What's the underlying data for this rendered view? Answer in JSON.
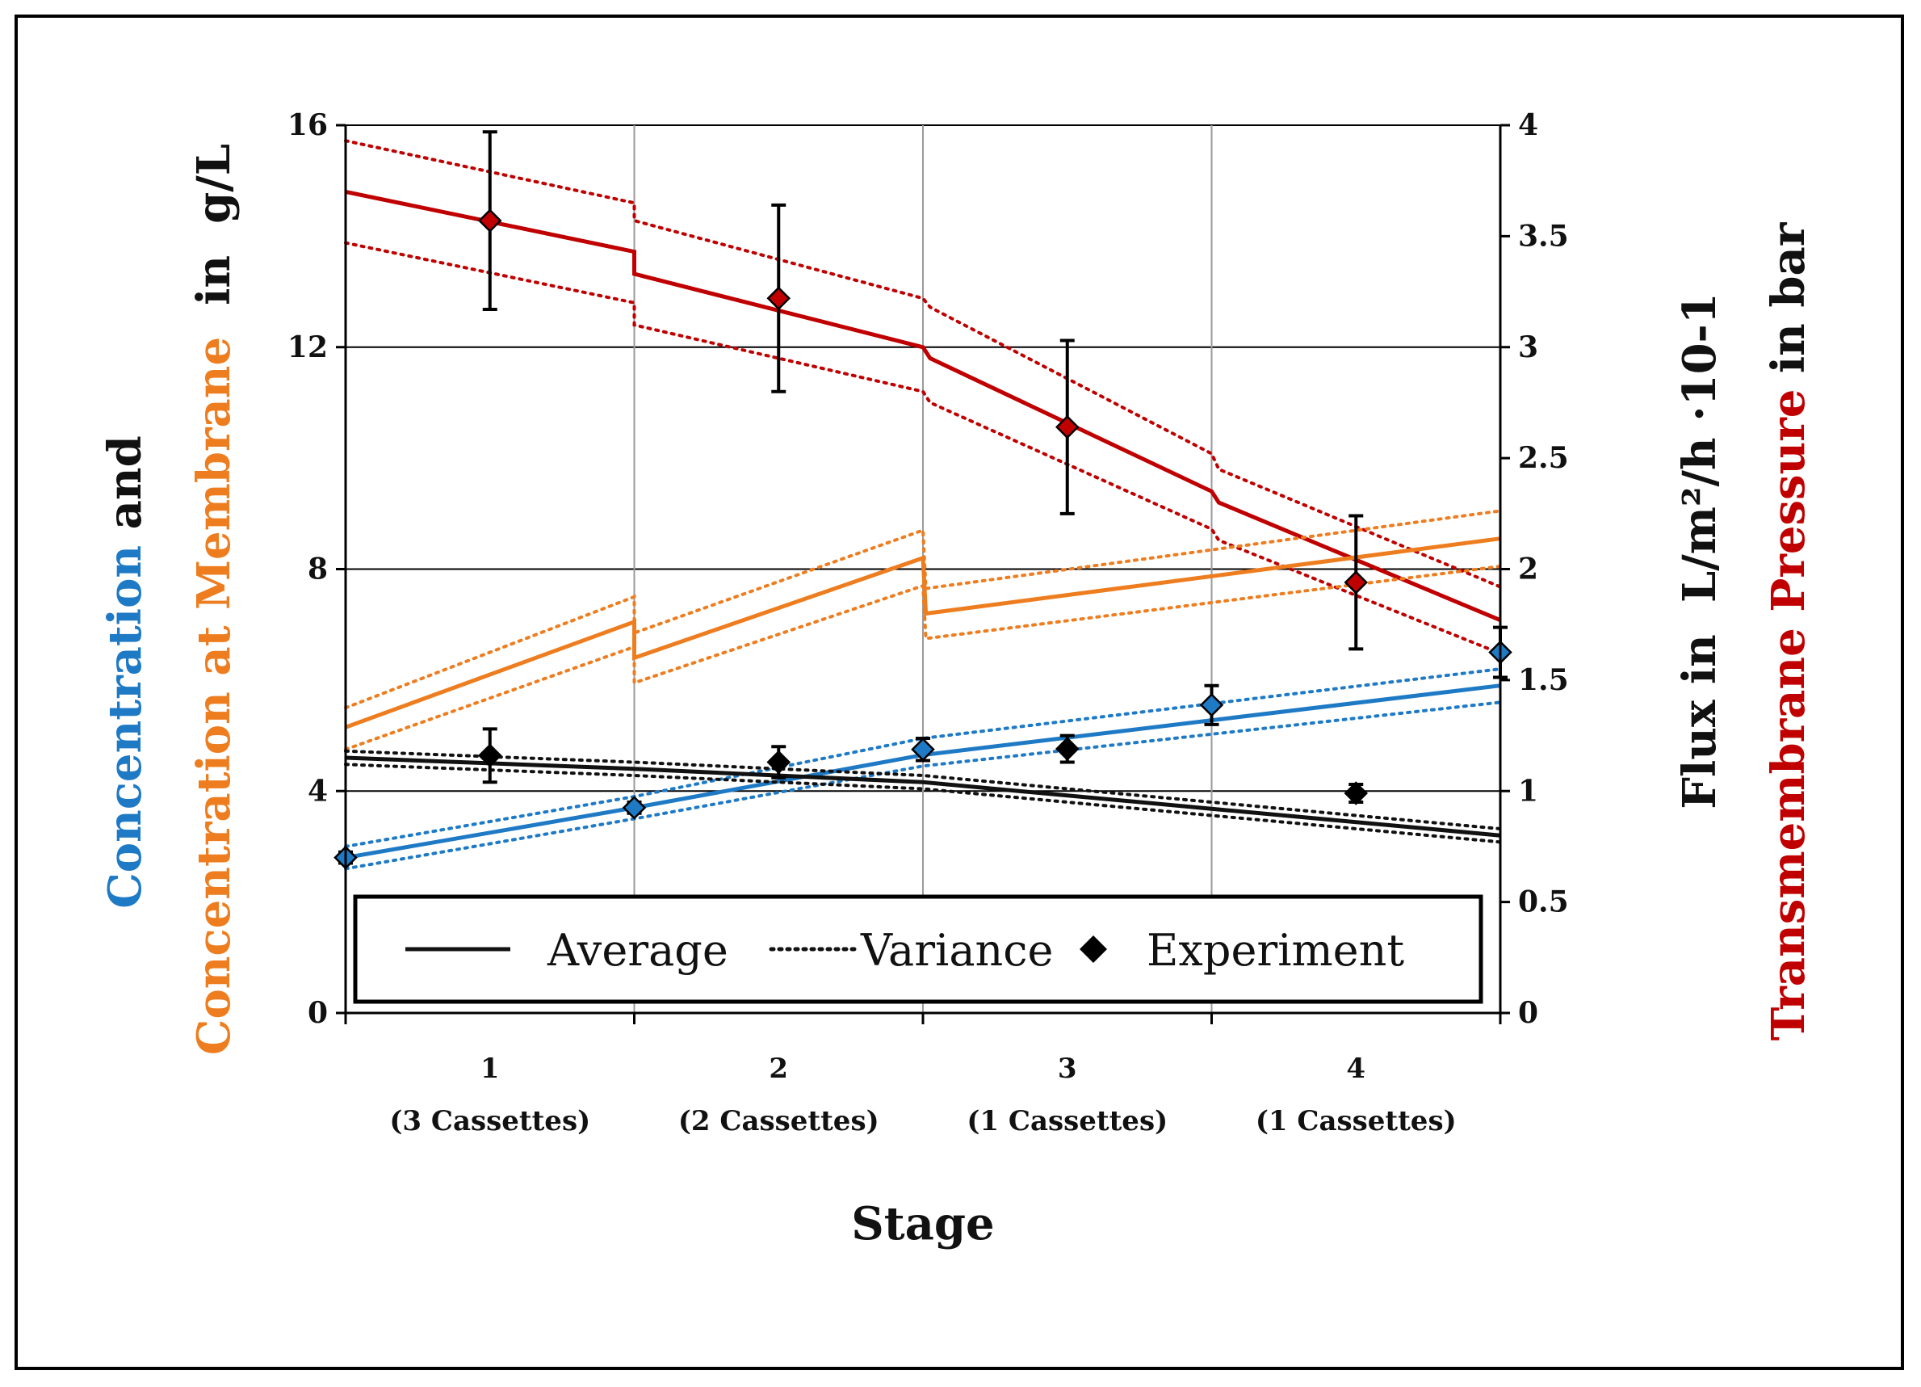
{
  "chart_data": {
    "type": "line",
    "xlabel": "Stage",
    "categories": [
      {
        "num": "1",
        "sub": "(3 Cassettes)"
      },
      {
        "num": "2",
        "sub": "(2 Cassettes)"
      },
      {
        "num": "3",
        "sub": "(1 Cassettes)"
      },
      {
        "num": "4",
        "sub": "(1 Cassettes)"
      }
    ],
    "xlim": [
      0,
      8
    ],
    "y_left": {
      "ylim": [
        0,
        16
      ],
      "ticks": [
        "0",
        "4",
        "8",
        "12",
        "16"
      ],
      "label_parts": [
        {
          "text": "Concentration",
          "color": "#1f7ac6"
        },
        {
          "text": " and",
          "color": "#111111"
        }
      ],
      "label2_parts": [
        {
          "text": "Concentration at Membrane",
          "color": "#ee7d1f"
        },
        {
          "text": "  in  g/L",
          "color": "#111111"
        }
      ]
    },
    "y_right": {
      "ylim": [
        0,
        4
      ],
      "ticks": [
        "0",
        "0.5",
        "1",
        "1.5",
        "2",
        "2.5",
        "3",
        "3.5",
        "4"
      ],
      "label_parts": [
        {
          "text": "Flux in  L/m²/h ·10-1",
          "color": "#111111"
        }
      ],
      "label2_parts": [
        {
          "text": "Transmembrane Pressure",
          "color": "#c00000"
        },
        {
          "text": " in bar",
          "color": "#111111"
        }
      ]
    },
    "legend": {
      "position": "lower-left",
      "entries": [
        {
          "style": "solid",
          "label": "Average"
        },
        {
          "style": "dotted",
          "label": "Variance"
        },
        {
          "style": "marker",
          "label": "Experiment"
        }
      ]
    },
    "series": [
      {
        "name": "Transmembrane Pressure",
        "color": "#c00000",
        "axis": "right",
        "average": [
          [
            0,
            3.7
          ],
          [
            2,
            3.43
          ],
          [
            2,
            3.33
          ],
          [
            4,
            3.0
          ],
          [
            4.05,
            2.95
          ],
          [
            6,
            2.35
          ],
          [
            6.05,
            2.3
          ],
          [
            8,
            1.77
          ]
        ],
        "upper": [
          [
            0,
            3.93
          ],
          [
            2,
            3.65
          ],
          [
            2,
            3.57
          ],
          [
            4,
            3.22
          ],
          [
            4.05,
            3.18
          ],
          [
            6,
            2.52
          ],
          [
            6.05,
            2.45
          ],
          [
            8,
            1.92
          ]
        ],
        "lower": [
          [
            0,
            3.47
          ],
          [
            2,
            3.2
          ],
          [
            2,
            3.1
          ],
          [
            4,
            2.8
          ],
          [
            4.05,
            2.75
          ],
          [
            6,
            2.18
          ],
          [
            6.05,
            2.13
          ],
          [
            8,
            1.62
          ]
        ],
        "experiment": [
          {
            "x": 1,
            "y": 3.57,
            "err": 0.4
          },
          {
            "x": 3,
            "y": 3.22,
            "err": 0.42
          },
          {
            "x": 5,
            "y": 2.64,
            "err": 0.39
          },
          {
            "x": 7,
            "y": 1.94,
            "err": 0.3
          }
        ]
      },
      {
        "name": "Concentration at Membrane",
        "color": "#ee7d1f",
        "axis": "left",
        "average": [
          [
            0,
            5.15
          ],
          [
            2,
            7.05
          ],
          [
            2,
            6.4
          ],
          [
            4,
            8.2
          ],
          [
            4.02,
            7.2
          ],
          [
            8,
            8.55
          ]
        ],
        "upper": [
          [
            0,
            5.5
          ],
          [
            2,
            7.5
          ],
          [
            2,
            6.85
          ],
          [
            4,
            8.7
          ],
          [
            4.02,
            7.65
          ],
          [
            8,
            9.05
          ]
        ],
        "lower": [
          [
            0,
            4.75
          ],
          [
            2,
            6.6
          ],
          [
            2,
            5.95
          ],
          [
            4,
            7.7
          ],
          [
            4.02,
            6.75
          ],
          [
            8,
            8.05
          ]
        ],
        "experiment": []
      },
      {
        "name": "Concentration",
        "color": "#1f7ac6",
        "axis": "left",
        "average": [
          [
            0,
            2.8
          ],
          [
            2,
            3.7
          ],
          [
            4,
            4.65
          ],
          [
            8,
            5.9
          ]
        ],
        "upper": [
          [
            0,
            3.0
          ],
          [
            2,
            3.9
          ],
          [
            4,
            4.95
          ],
          [
            8,
            6.2
          ]
        ],
        "lower": [
          [
            0,
            2.6
          ],
          [
            2,
            3.5
          ],
          [
            4,
            4.45
          ],
          [
            8,
            5.6
          ]
        ],
        "experiment": [
          {
            "x": 0,
            "y": 2.8,
            "err": 0.1
          },
          {
            "x": 2,
            "y": 3.7,
            "err": 0.1
          },
          {
            "x": 4,
            "y": 4.75,
            "err": 0.2
          },
          {
            "x": 6,
            "y": 5.55,
            "err": 0.35
          },
          {
            "x": 8,
            "y": 6.5,
            "err": 0.45
          }
        ]
      },
      {
        "name": "Flux",
        "color": "#111111",
        "axis": "right",
        "average": [
          [
            0,
            1.15
          ],
          [
            2,
            1.1
          ],
          [
            4,
            1.04
          ],
          [
            6,
            0.92
          ],
          [
            8,
            0.8
          ]
        ],
        "upper": [
          [
            0,
            1.18
          ],
          [
            2,
            1.13
          ],
          [
            4,
            1.07
          ],
          [
            6,
            0.95
          ],
          [
            8,
            0.83
          ]
        ],
        "lower": [
          [
            0,
            1.12
          ],
          [
            2,
            1.07
          ],
          [
            4,
            1.01
          ],
          [
            6,
            0.89
          ],
          [
            8,
            0.77
          ]
        ],
        "experiment": [
          {
            "x": 1,
            "y": 1.16,
            "err": 0.12
          },
          {
            "x": 3,
            "y": 1.13,
            "err": 0.07
          },
          {
            "x": 5,
            "y": 1.19,
            "err": 0.06
          },
          {
            "x": 7,
            "y": 0.99,
            "err": 0.04
          }
        ]
      }
    ]
  }
}
